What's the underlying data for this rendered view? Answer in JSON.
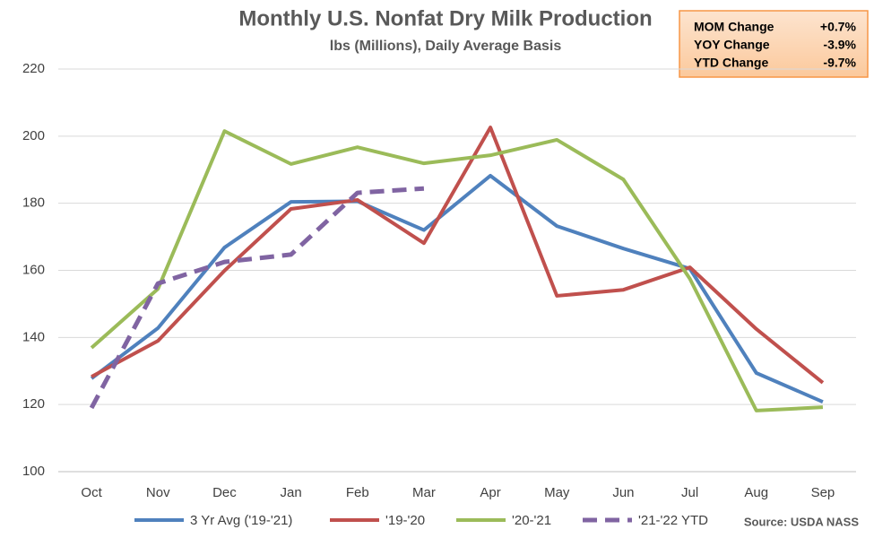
{
  "chart_data": {
    "type": "line",
    "title": "Monthly U.S. Nonfat Dry Milk Production",
    "subtitle": "lbs (Millions), Daily Average Basis",
    "categories": [
      "Oct",
      "Nov",
      "Dec",
      "Jan",
      "Feb",
      "Mar",
      "Apr",
      "May",
      "Jun",
      "Jul",
      "Aug",
      "Sep"
    ],
    "series": [
      {
        "name": "3 Yr Avg ('19-'21)",
        "color": "#4f81bd",
        "dashed": false,
        "values": [
          127.8,
          142.8,
          166.8,
          180.4,
          180.6,
          172.0,
          188.2,
          173.2,
          166.5,
          160.5,
          129.4,
          120.8
        ]
      },
      {
        "name": "'19-'20",
        "color": "#c0504d",
        "dashed": false,
        "values": [
          128.3,
          139.0,
          159.9,
          178.3,
          181.0,
          168.1,
          202.6,
          152.4,
          154.2,
          160.9,
          142.5,
          126.5
        ]
      },
      {
        "name": "'20-'21",
        "color": "#9bbb59",
        "dashed": false,
        "values": [
          136.9,
          154.5,
          201.5,
          191.7,
          196.7,
          191.9,
          194.3,
          198.9,
          187.1,
          157.5,
          118.2,
          119.2
        ]
      },
      {
        "name": "'21-'22 YTD",
        "color": "#8064a2",
        "dashed": true,
        "values": [
          119.0,
          156.1,
          162.5,
          164.7,
          183.1,
          184.4,
          null,
          null,
          null,
          null,
          null,
          null
        ]
      }
    ],
    "ylim": [
      100,
      220
    ],
    "yticks": [
      100,
      120,
      140,
      160,
      180,
      200,
      220
    ],
    "grid": true,
    "source": "Source: USDA NASS",
    "info_box": [
      [
        "MOM Change",
        "+0.7%"
      ],
      [
        "YOY Change",
        "-3.9%"
      ],
      [
        "YTD Change",
        "-9.7%"
      ]
    ]
  }
}
